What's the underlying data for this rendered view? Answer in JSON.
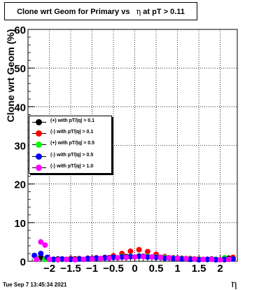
{
  "title": "Clone wrt Geom for Primary vs",
  "title_eta": "η",
  "title_tail": "at pT > 0.11",
  "footer_date": "Tue Sep  7 13:45:34 2021",
  "chart_data": {
    "type": "scatter",
    "title": "Clone wrt Geom for Primary vs η at pT > 0.11",
    "xlabel": "η",
    "ylabel": "Clone wrt Geom (%)",
    "xlim": [
      -2.5,
      2.4
    ],
    "ylim": [
      0,
      60
    ],
    "grid": true,
    "legend_position": "middle-left",
    "x_ticks": [
      "−2",
      "−1.5",
      "−1",
      "−0.5",
      "0",
      "0.5",
      "1",
      "1.5",
      "2"
    ],
    "x_tick_values": [
      -2,
      -1.5,
      -1,
      -0.5,
      0,
      0.5,
      1,
      1.5,
      2
    ],
    "y_ticks": [
      "0",
      "10",
      "20",
      "30",
      "40",
      "50",
      "60"
    ],
    "y_tick_values": [
      0,
      10,
      20,
      30,
      40,
      50,
      60
    ],
    "series": [
      {
        "name": "(+) with pT/|q| > 0.1",
        "color": "#000000",
        "x": [
          -2.2,
          -1.8,
          -1.4,
          -1.0,
          -0.6,
          -0.2,
          0.2,
          0.6,
          1.0,
          1.4,
          1.8,
          2.2
        ],
        "y": [
          1.0,
          0.6,
          0.6,
          0.7,
          0.9,
          1.2,
          1.3,
          1.0,
          0.8,
          0.6,
          0.6,
          0.8
        ]
      },
      {
        "name": "(-) with pT/|q| > 0.1",
        "color": "#ff0000",
        "x": [
          -2.3,
          -2.1,
          -1.9,
          -1.7,
          -1.5,
          -1.3,
          -1.1,
          -0.9,
          -0.7,
          -0.5,
          -0.3,
          -0.1,
          0.1,
          0.3,
          0.5,
          0.7,
          0.9,
          1.1,
          1.3,
          1.5,
          1.7,
          1.9,
          2.1,
          2.3
        ],
        "y": [
          0.8,
          0.6,
          0.5,
          0.6,
          0.7,
          0.7,
          0.8,
          0.9,
          1.0,
          1.4,
          2.0,
          2.6,
          3.0,
          2.5,
          1.8,
          1.2,
          0.9,
          0.8,
          0.7,
          0.6,
          0.5,
          0.5,
          0.4,
          1.0
        ]
      },
      {
        "name": "(+) with pT/|q| > 0.5",
        "color": "#00ff00",
        "x": [
          -2.3,
          -2.1,
          -1.9,
          -1.7,
          -1.5,
          -1.3,
          -1.1,
          -0.9,
          -0.7,
          -0.5,
          -0.3,
          -0.1,
          0.1,
          0.3,
          0.5,
          0.7,
          0.9,
          1.1,
          1.3,
          1.5,
          1.7,
          1.9,
          2.1,
          2.3
        ],
        "y": [
          0.7,
          0.5,
          0.4,
          0.5,
          0.5,
          0.6,
          0.7,
          0.8,
          0.9,
          1.0,
          1.2,
          1.3,
          1.4,
          1.3,
          1.1,
          1.0,
          0.8,
          0.7,
          0.6,
          0.5,
          0.4,
          0.5,
          0.9,
          0.6
        ]
      },
      {
        "name": "(-) with pT/|q| > 0.5",
        "color": "#0000ff",
        "x": [
          -2.35,
          -2.2,
          -2.05,
          -1.9,
          -1.7,
          -1.5,
          -1.3,
          -1.1,
          -0.9,
          -0.7,
          -0.5,
          -0.3,
          -0.1,
          0.1,
          0.3,
          0.5,
          0.7,
          0.9,
          1.1,
          1.3,
          1.5,
          1.7,
          1.9,
          2.1,
          2.3
        ],
        "y": [
          1.5,
          2.0,
          1.0,
          0.5,
          0.6,
          0.5,
          0.6,
          0.7,
          0.8,
          0.9,
          1.0,
          1.1,
          1.2,
          1.3,
          1.1,
          1.0,
          0.8,
          0.7,
          0.6,
          0.5,
          0.4,
          0.5,
          0.4,
          0.5,
          0.6
        ]
      },
      {
        "name": "(-) with pT/|q| > 1.0",
        "color": "#ff00ff",
        "x": [
          -2.3,
          -2.2,
          -2.1,
          -2.0,
          -1.8,
          -1.6,
          -1.4,
          -1.2,
          -1.0,
          -0.8,
          -0.6,
          -0.4,
          -0.2,
          0.0,
          0.2,
          0.4,
          0.6,
          0.8,
          1.0,
          1.2,
          1.4,
          1.6,
          1.8,
          2.0,
          2.2
        ],
        "y": [
          0.5,
          5.0,
          4.2,
          0.5,
          0.4,
          0.5,
          0.4,
          0.5,
          0.6,
          0.7,
          0.8,
          0.9,
          1.0,
          1.1,
          1.2,
          1.1,
          1.0,
          0.9,
          0.8,
          0.7,
          0.6,
          0.5,
          0.5,
          0.4,
          0.5
        ]
      }
    ]
  }
}
